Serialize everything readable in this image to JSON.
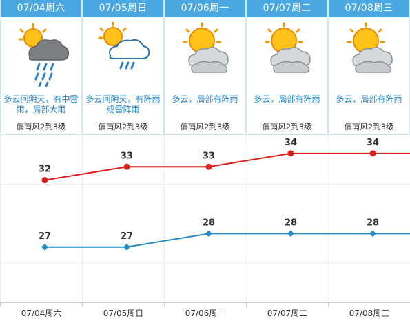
{
  "forecast": [
    {
      "date": "07/04周六",
      "icon": "thunderstorm-heavy-rain-icon",
      "condition": "多云间阴天，有中雷雨，局部大雨",
      "wind": "偏南风2到3级"
    },
    {
      "date": "07/05周日",
      "icon": "partly-cloudy-shower-icon",
      "condition": "多云间阴天，有阵雨或雷阵雨",
      "wind": "偏南风2到3级"
    },
    {
      "date": "07/06周一",
      "icon": "partly-cloudy-icon",
      "condition": "多云，局部有阵雨",
      "wind": "偏南风2到3级"
    },
    {
      "date": "07/07周二",
      "icon": "partly-cloudy-icon",
      "condition": "多云，局部有阵雨",
      "wind": "偏南风2到3级"
    },
    {
      "date": "07/08周三",
      "icon": "partly-cloudy-icon",
      "condition": "多云，局部有阵雨",
      "wind": "偏南风2到3级"
    }
  ],
  "chart_data": {
    "type": "line",
    "categories": [
      "07/04周六",
      "07/05周日",
      "07/06周一",
      "07/07周二",
      "07/08周三"
    ],
    "series": [
      {
        "values": [
          32,
          33,
          33,
          34,
          34
        ],
        "color": "#d9201c"
      },
      {
        "values": [
          27,
          27,
          28,
          28,
          28
        ],
        "color": "#2b8cbf"
      }
    ],
    "grid": true
  }
}
